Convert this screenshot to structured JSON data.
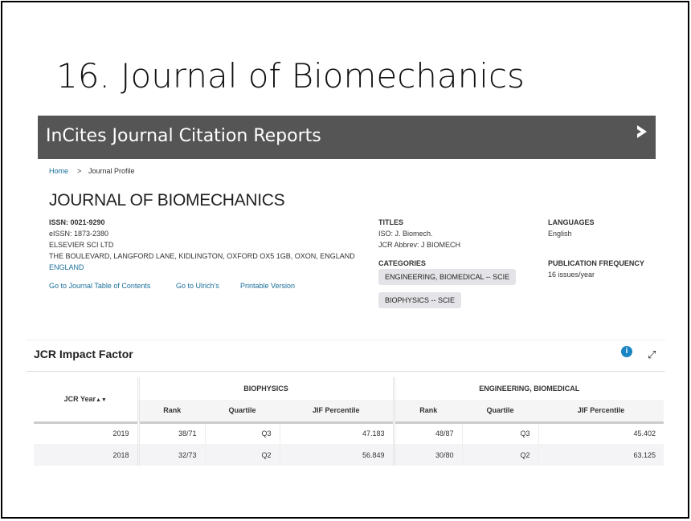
{
  "slide_title": "16. Journal of Biomechanics",
  "banner": {
    "title": "InCites Journal Citation Reports",
    "logo_icon": "clarivate-logo-icon"
  },
  "breadcrumb": {
    "home": "Home",
    "sep": ">",
    "current": "Journal Profile"
  },
  "journal": {
    "name": "JOURNAL OF BIOMECHANICS",
    "issn": "ISSN: 0021-9290",
    "eissn": "eISSN: 1873-2380",
    "publisher": "ELSEVIER SCI LTD",
    "address": "THE BOULEVARD, LANGFORD LANE, KIDLINGTON, OXFORD OX5 1GB, OXON, ENGLAND",
    "country": "ENGLAND",
    "links": [
      "Go to Journal Table of Contents",
      "Go to Ulrich's",
      "Printable Version"
    ],
    "titles_label": "TITLES",
    "iso": "ISO: J. Biomech.",
    "abbrev": "JCR Abbrev: J BIOMECH",
    "categories_label": "CATEGORIES",
    "categories": [
      "ENGINEERING, BIOMEDICAL -- SCIE",
      "BIOPHYSICS -- SCIE"
    ],
    "languages_label": "LANGUAGES",
    "language": "English",
    "freq_label": "PUBLICATION FREQUENCY",
    "freq": "16 issues/year"
  },
  "impact": {
    "title": "JCR Impact Factor",
    "info_icon": "i",
    "expand_icon": "⤢",
    "year_header": "JCR Year",
    "sort_icon": "▲▼",
    "groups": [
      "BIOPHYSICS",
      "ENGINEERING, BIOMEDICAL"
    ],
    "sub": [
      "Rank",
      "Quartile",
      "JIF Percentile"
    ],
    "rows": [
      [
        "2019",
        "38/71",
        "Q3",
        "47.183",
        "48/87",
        "Q3",
        "45.402"
      ],
      [
        "2018",
        "32/73",
        "Q2",
        "56.849",
        "30/80",
        "Q2",
        "63.125"
      ]
    ]
  }
}
